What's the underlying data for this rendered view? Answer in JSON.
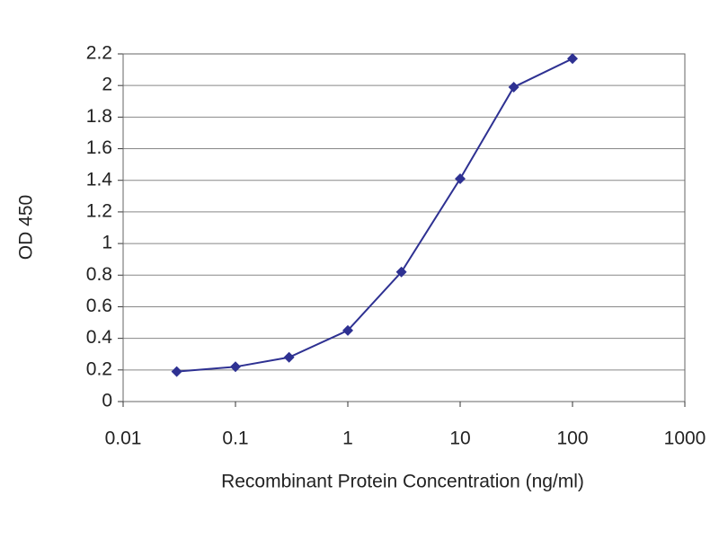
{
  "chart_data": {
    "type": "line",
    "xlabel": "Recombinant Protein Concentration (ng/ml)",
    "ylabel": "OD 450",
    "x": [
      0.03,
      0.1,
      0.3,
      1,
      3,
      10,
      30,
      100
    ],
    "series": [
      {
        "color": "#2e3192",
        "values": [
          0.19,
          0.22,
          0.28,
          0.45,
          0.82,
          1.41,
          1.99,
          2.17
        ]
      }
    ],
    "xscale": "log",
    "xlim": [
      0.01,
      1000
    ],
    "xticks": [
      0.01,
      0.1,
      1,
      10,
      100,
      1000
    ],
    "ylim": [
      0,
      2.2
    ],
    "yticks": [
      0,
      0.2,
      0.4,
      0.6,
      0.8,
      1,
      1.2,
      1.4,
      1.6,
      1.8,
      2,
      2.2
    ],
    "grid": true
  }
}
